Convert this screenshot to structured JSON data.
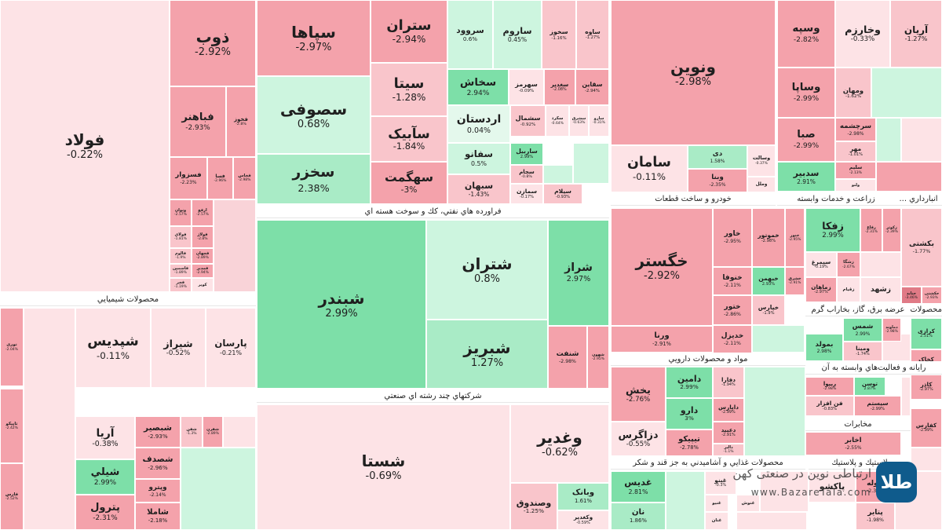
{
  "chart_data": {
    "type": "treemap",
    "colors": {
      "up_strong": "#7ddfa8",
      "up_mid": "#a9ebc6",
      "up_light": "#cdf5df",
      "neutral_up": "#e4f8ec",
      "down_light": "#fde3e6",
      "down_mid": "#f9c5cb",
      "down_strong": "#f4a2ab",
      "down_deep": "#e07a86"
    },
    "sectors": [
      "محصولات شيميايي",
      "فراورده هاي نفتي، كك و سوخت هسته اي",
      "شركتهاي چند رشته اي صنعتي",
      "خودرو و ساخت قطعات",
      "زراعت و خدمات وابسته",
      "انبارداري ...",
      "مواد و محصولات دارويي",
      "عرضه برق، گاز، بخاراب گرم",
      "محصولات ك...",
      "رايانه و فعاليت‌هاي وابسته به آن",
      "مخابرات",
      "محصولات غذايي و آشاميدني به جز قند و شكر",
      "لاستيك و پلاستيك"
    ],
    "stocks": [
      {
        "symbol": "فولاد",
        "change": "-0.22%"
      },
      {
        "symbol": "ذوب",
        "change": "-2.92%"
      },
      {
        "symbol": "فباهنر",
        "change": "-2.93%"
      },
      {
        "symbol": "فخوز",
        "change": "-2.8%"
      },
      {
        "symbol": "فسرب",
        "change": ""
      },
      {
        "symbol": "فسزوار",
        "change": "-2.23%"
      },
      {
        "symbol": "فسا",
        "change": "-2.96%"
      },
      {
        "symbol": "فخاس",
        "change": "-2.98%"
      },
      {
        "symbol": "ونوان",
        "change": "-2.57%"
      },
      {
        "symbol": "ارفع",
        "change": "-2.57%"
      },
      {
        "symbol": "فولای",
        "change": "-1.81%"
      },
      {
        "symbol": "فولاژ",
        "change": "-2.8%"
      },
      {
        "symbol": "فالوم",
        "change": "-1.9%"
      },
      {
        "symbol": "فجهان",
        "change": "-2.89%"
      },
      {
        "symbol": "فاسمین",
        "change": "-1.89%"
      },
      {
        "symbol": "فمدیر",
        "change": "-2.94%"
      },
      {
        "symbol": "فجر",
        "change": "-1.19%"
      },
      {
        "symbol": "کویر",
        "change": ""
      },
      {
        "symbol": "سپاها",
        "change": "-2.97%"
      },
      {
        "symbol": "ستران",
        "change": "-2.94%"
      },
      {
        "symbol": "سروود",
        "change": "0.6%"
      },
      {
        "symbol": "ساروم",
        "change": "0.45%"
      },
      {
        "symbol": "سخوز",
        "change": "-1.16%"
      },
      {
        "symbol": "ساوه",
        "change": "-1.27%"
      },
      {
        "symbol": "سيتا",
        "change": "-1.28%"
      },
      {
        "symbol": "سصوفی",
        "change": "0.68%"
      },
      {
        "symbol": "سخاش",
        "change": "2.94%"
      },
      {
        "symbol": "سهرمز",
        "change": "-0.09%"
      },
      {
        "symbol": "سغدير",
        "change": "-2.08%"
      },
      {
        "symbol": "سقاين",
        "change": "-2.94%"
      },
      {
        "symbol": "اردستان",
        "change": "0.04%"
      },
      {
        "symbol": "سشمال",
        "change": "-0.92%"
      },
      {
        "symbol": "سکرد",
        "change": "-0.64%"
      },
      {
        "symbol": "سشرق",
        "change": "-0.63%"
      },
      {
        "symbol": "سارو",
        "change": "-0.31%"
      },
      {
        "symbol": "سآبيک",
        "change": "-1.84%"
      },
      {
        "symbol": "سخزر",
        "change": "2.38%"
      },
      {
        "symbol": "سفانو",
        "change": "0.5%"
      },
      {
        "symbol": "ساربیل",
        "change": "2.99%"
      },
      {
        "symbol": "سجام",
        "change": "-0.8%"
      },
      {
        "symbol": "سهگمت",
        "change": "-3%"
      },
      {
        "symbol": "سبهان",
        "change": "-1.43%"
      },
      {
        "symbol": "سمازن",
        "change": "-0.17%"
      },
      {
        "symbol": "سيلام",
        "change": "-0.93%"
      },
      {
        "symbol": "ونوين",
        "change": "-2.98%"
      },
      {
        "symbol": "ساماني",
        "change": ""
      },
      {
        "symbol": "سامان",
        "change": "-0.11%"
      },
      {
        "symbol": "دی",
        "change": "1.58%"
      },
      {
        "symbol": "وبنا",
        "change": "-2.35%"
      },
      {
        "symbol": "وسالت",
        "change": "-0.37%"
      },
      {
        "symbol": "وملل",
        "change": ""
      },
      {
        "symbol": "وسپه",
        "change": "-2.82%"
      },
      {
        "symbol": "وخارزم",
        "change": "-0.33%"
      },
      {
        "symbol": "آریان",
        "change": "-1.27%"
      },
      {
        "symbol": "وساپا",
        "change": "-2.99%"
      },
      {
        "symbol": "ومهان",
        "change": "-1.62%"
      },
      {
        "symbol": "صبا",
        "change": "-2.99%"
      },
      {
        "symbol": "سرچشمه",
        "change": "-2.98%"
      },
      {
        "symbol": "مهر",
        "change": "-1.01%"
      },
      {
        "symbol": "سدبیر",
        "change": "2.91%"
      },
      {
        "symbol": "سليم",
        "change": "-2.13%"
      },
      {
        "symbol": "ولتو",
        "change": ""
      },
      {
        "symbol": "شبندر",
        "change": "2.99%"
      },
      {
        "symbol": "شتران",
        "change": "0.8%"
      },
      {
        "symbol": "شراز",
        "change": "2.97%"
      },
      {
        "symbol": "شبريز",
        "change": "1.27%"
      },
      {
        "symbol": "شنفت",
        "change": "-2.98%"
      },
      {
        "symbol": "شهون",
        "change": "-2.95%"
      },
      {
        "symbol": "شستا",
        "change": "-0.69%"
      },
      {
        "symbol": "وغدير",
        "change": "-0.62%"
      },
      {
        "symbol": "وصندوق",
        "change": "-1.25%"
      },
      {
        "symbol": "وبانک",
        "change": "1.61%"
      },
      {
        "symbol": "وكغدير",
        "change": "-0.59%"
      },
      {
        "symbol": "خگستر",
        "change": "-2.92%"
      },
      {
        "symbol": "خاور",
        "change": "-2.95%"
      },
      {
        "symbol": "خموتور",
        "change": "-2.98%"
      },
      {
        "symbol": "خنور",
        "change": "-2.95%"
      },
      {
        "symbol": "خودرو",
        "change": ""
      },
      {
        "symbol": "خنوفا",
        "change": "-2.11%"
      },
      {
        "symbol": "خبهمن",
        "change": "2.93%"
      },
      {
        "symbol": "خشرق",
        "change": "-2.91%"
      },
      {
        "symbol": "ختور",
        "change": "-2.86%"
      },
      {
        "symbol": "خپارس",
        "change": "-1.9%"
      },
      {
        "symbol": "خديزل",
        "change": "-2.11%"
      },
      {
        "symbol": "ختراک",
        "change": "-2.17%"
      },
      {
        "symbol": "ورنا",
        "change": "-2.91%"
      },
      {
        "symbol": "زفکا",
        "change": "2.99%"
      },
      {
        "symbol": "رقاع",
        "change": "-2.31%"
      },
      {
        "symbol": "زکوثر",
        "change": "-2.39%"
      },
      {
        "symbol": "سیمرغ",
        "change": "-0.19%"
      },
      {
        "symbol": "زشگا",
        "change": "-2.67%"
      },
      {
        "symbol": "زماهان",
        "change": "-2.97%"
      },
      {
        "symbol": "زقيام",
        "change": ""
      },
      {
        "symbol": "زشهد",
        "change": ""
      },
      {
        "symbol": "بکشتی",
        "change": "-1.77%"
      },
      {
        "symbol": "حتايد",
        "change": "-3.46%"
      },
      {
        "symbol": "حکشتی",
        "change": "-2.93%"
      },
      {
        "symbol": "يخش",
        "change": "-2.76%"
      },
      {
        "symbol": "دامين",
        "change": "2.99%"
      },
      {
        "symbol": "دفارا",
        "change": "-1.94%"
      },
      {
        "symbol": "داپارس",
        "change": "-2.99%"
      },
      {
        "symbol": "دارو",
        "change": "3%"
      },
      {
        "symbol": "دعبيد",
        "change": "-2.91%"
      },
      {
        "symbol": "دزاگرس",
        "change": "-0.55%"
      },
      {
        "symbol": "تيپيکو",
        "change": "-2.78%"
      },
      {
        "symbol": "دالبر",
        "change": "-1.1%"
      },
      {
        "symbol": "شمس",
        "change": "2.99%"
      },
      {
        "symbol": "دماوند",
        "change": "-2.98%"
      },
      {
        "symbol": "بمولد",
        "change": "2.98%"
      },
      {
        "symbol": "ومینا",
        "change": "-1.74%"
      },
      {
        "symbol": "کرازی",
        "change": "2.51%"
      },
      {
        "symbol": "کخاک",
        "change": "-2.98%"
      },
      {
        "symbol": "کاذر",
        "change": "-2.97%"
      },
      {
        "symbol": "ربیوا",
        "change": "-2.98%"
      },
      {
        "symbol": "توسن",
        "change": "2.87%"
      },
      {
        "symbol": "فن افزار",
        "change": "-0.83%"
      },
      {
        "symbol": "سیستم",
        "change": "-2.99%"
      },
      {
        "symbol": "کفارس",
        "change": "-2.99%"
      },
      {
        "symbol": "اخابر",
        "change": "-2.55%"
      },
      {
        "symbol": "غدیس",
        "change": "2.81%"
      },
      {
        "symbol": "غبنو",
        "change": "-0.3%"
      },
      {
        "symbol": "غنیو",
        "change": ""
      },
      {
        "symbol": "نان",
        "change": "1.86%"
      },
      {
        "symbol": "غنوش",
        "change": ""
      },
      {
        "symbol": "غنان",
        "change": ""
      },
      {
        "symbol": "پاکشو",
        "change": ""
      },
      {
        "symbol": "پتاير",
        "change": "-1.98%"
      },
      {
        "symbol": "پلوله",
        "change": "-2.37%"
      },
      {
        "symbol": "شپديس",
        "change": "-0.11%"
      },
      {
        "symbol": "شيراز",
        "change": "-0.52%"
      },
      {
        "symbol": "پارسان",
        "change": "-0.21%"
      },
      {
        "symbol": "آريا",
        "change": "-0.38%"
      },
      {
        "symbol": "شيلي",
        "change": "2.99%"
      },
      {
        "symbol": "شبصیر",
        "change": "-2.93%"
      },
      {
        "symbol": "شغدیر",
        "change": "-2.4%"
      },
      {
        "symbol": "شصدف",
        "change": "-2.96%"
      },
      {
        "symbol": "شاملا",
        "change": "-2.18%"
      },
      {
        "symbol": "پترول",
        "change": "-2.31%"
      },
      {
        "symbol": "وپترو",
        "change": "-2.14%"
      },
      {
        "symbol": "شفن",
        "change": "-1.3%"
      },
      {
        "symbol": "شفرن",
        "change": "-2.89%"
      },
      {
        "symbol": "نوری",
        "change": "-2.04%"
      },
      {
        "symbol": "تاپیکو",
        "change": "-2.42%"
      },
      {
        "symbol": "فارس",
        "change": "-2.52%"
      }
    ]
  },
  "watermark": {
    "logo_text": "طلا",
    "line1": "ارتباطی نوین در صنعتی کهن",
    "line2": "www.BazareTala.com"
  }
}
